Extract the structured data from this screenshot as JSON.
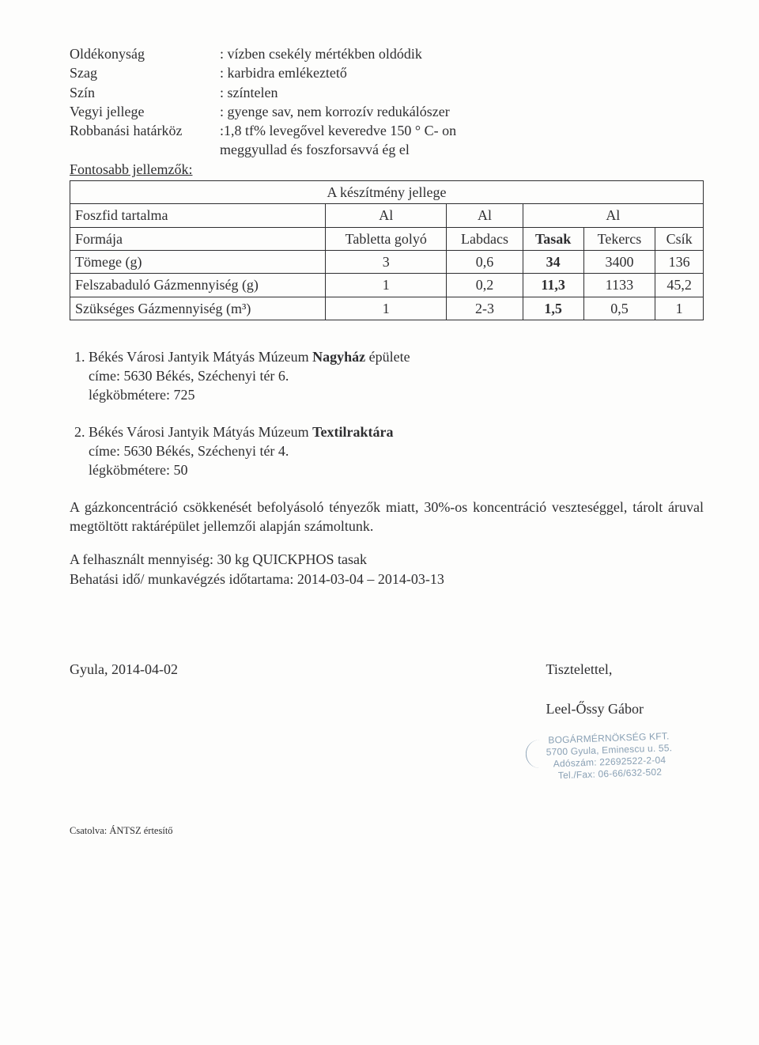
{
  "properties": [
    {
      "label": "Oldékonyság",
      "value": ": vízben csekély mértékben oldódik"
    },
    {
      "label": "Szag",
      "value": ": karbidra emlékeztető"
    },
    {
      "label": "Szín",
      "value": ": színtelen"
    },
    {
      "label": "Vegyi jellege",
      "value": ": gyenge sav, nem korrozív redukálószer"
    },
    {
      "label": "Robbanási határköz",
      "value": ":1,8 tf% levegővel keveredve 150 ° C- on"
    },
    {
      "label": "",
      "value": "meggyullad és foszforsavvá ég el"
    }
  ],
  "fontosabb_label": "Fontosabb jellemzők:",
  "table": {
    "header_title": "A készítmény jellege",
    "rows": [
      {
        "c1": "Foszfid tartalma",
        "c2": "Al",
        "c3": "Al",
        "c4": "Al",
        "c5": "",
        "c6": "",
        "span45": true,
        "al_row": true
      },
      {
        "c1": "Formája",
        "c2": "Tabletta golyó",
        "c3": "Labdacs",
        "c4": "Tasak",
        "c5": "Tekercs",
        "c6": "Csík",
        "bold4": true
      },
      {
        "c1": "Tömege (g)",
        "c2": "3",
        "c3": "0,6",
        "c4": "34",
        "c5": "3400",
        "c6": "136",
        "bold4": true
      },
      {
        "c1": "Felszabaduló Gázmennyiség (g)",
        "c2": "1",
        "c3": "0,2",
        "c4": "11,3",
        "c5": "1133",
        "c6": "45,2",
        "bold4": true
      },
      {
        "c1": "Szükséges Gázmennyiség (m³)",
        "c2": "1",
        "c3": "2-3",
        "c4": "1,5",
        "c5": "0,5",
        "c6": "1",
        "bold4": true
      }
    ]
  },
  "list": [
    {
      "line1_a": "Békés Városi Jantyik Mátyás Múzeum ",
      "line1_b": "Nagyház",
      "line1_c": " épülete",
      "line2": "címe: 5630 Békés, Széchenyi tér 6.",
      "line3": "légköbmétere: 725"
    },
    {
      "line1_a": "Békés Városi Jantyik Mátyás Múzeum ",
      "line1_b": "Textilraktára",
      "line1_c": "",
      "line2": "címe: 5630 Békés, Széchenyi tér 4.",
      "line3": "légköbmétere: 50"
    }
  ],
  "para1": "A gázkoncentráció csökkenését befolyásoló tényezők miatt, 30%-os koncentráció veszteséggel, tárolt áruval megtöltött raktárépület jellemzői alapján számoltunk.",
  "para2": "A felhasznált mennyiség: 30 kg QUICKPHOS tasak",
  "para3": "Behatási idő/ munkavégzés időtartama: 2014-03-04 – 2014-03-13",
  "closing": {
    "place_date": "Gyula, 2014-04-02",
    "salutation": "Tisztelettel,",
    "name": "Leel-Őssy Gábor"
  },
  "stamp": {
    "l1": "BOGÁRMÉRNÖKSÉG KFT.",
    "l2": "5700 Gyula, Eminescu u. 55.",
    "l3": "Adószám: 22692522-2-04",
    "l4": "Tel./Fax: 06-66/632-502"
  },
  "attach": "Csatolva: ÁNTSZ értesítő"
}
